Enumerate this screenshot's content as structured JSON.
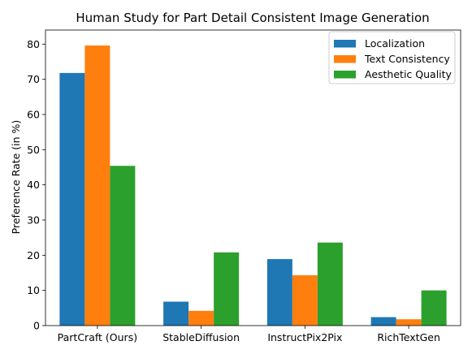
{
  "chart_data": {
    "type": "bar",
    "title": "Human Study for Part Detail Consistent Image Generation",
    "xlabel": "",
    "ylabel": "Preference Rate (in %)",
    "ylim": [
      0,
      84
    ],
    "yticks": [
      0,
      10,
      20,
      30,
      40,
      50,
      60,
      70,
      80
    ],
    "categories": [
      "PartCraft (Ours)",
      "StableDiffusion",
      "InstructPix2Pix",
      "RichTextGen"
    ],
    "series": [
      {
        "name": "Localization",
        "color": "#1f77b4",
        "values": [
          71.8,
          6.8,
          18.9,
          2.4
        ]
      },
      {
        "name": "Text Consistency",
        "color": "#ff7f0e",
        "values": [
          79.6,
          4.2,
          14.3,
          1.8
        ]
      },
      {
        "name": "Aesthetic Quality",
        "color": "#2ca02c",
        "values": [
          45.4,
          20.8,
          23.6,
          10.0
        ]
      }
    ],
    "legend": "top-right",
    "grid": false
  }
}
